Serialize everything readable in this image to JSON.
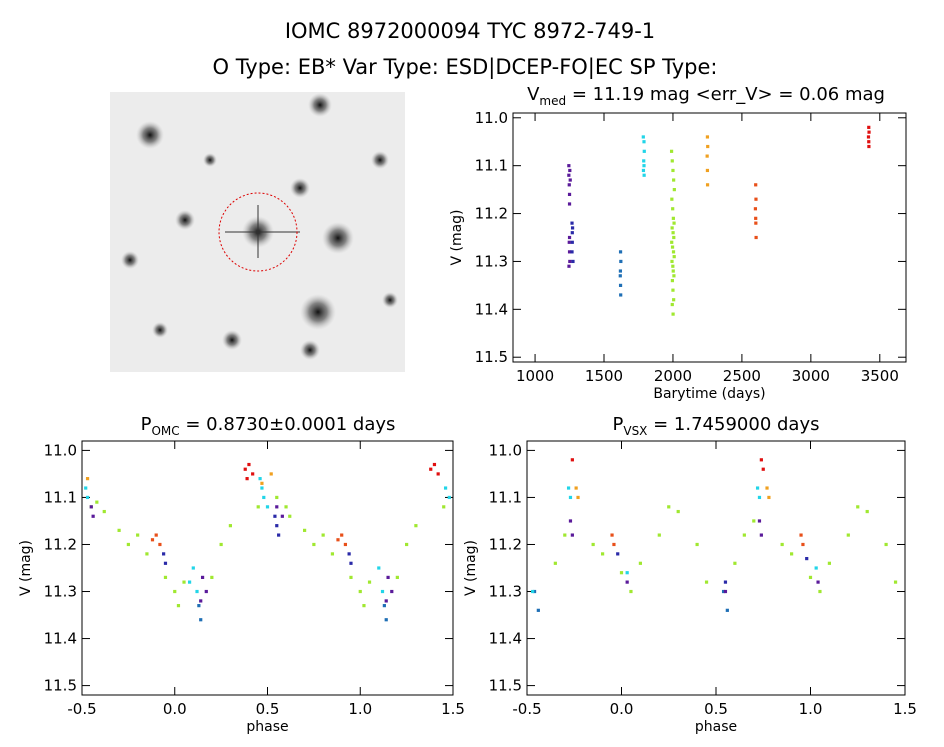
{
  "header": {
    "title": "IOMC 8972000094    TYC 8972-749-1",
    "subtitle": "O Type: EB*  Var Type: ESD|DCEP-FO|EC  SP Type:"
  },
  "chart_data": [
    {
      "type": "scatter",
      "title": [
        "V",
        "med",
        " = 11.19 mag <err_V> = 0.06 mag"
      ],
      "xlabel": "Barytime (days)",
      "ylabel": "V (mag)",
      "xlim": [
        840,
        3690
      ],
      "ylim": [
        11.51,
        10.99
      ],
      "xticks": [
        1000,
        1500,
        2000,
        2500,
        3000,
        3500
      ],
      "yticks": [
        {
          "value": 11,
          "label": "11.0"
        },
        11.1,
        11.2,
        11.3,
        11.4,
        11.5
      ],
      "series": [
        {
          "color": "#5a1a9a",
          "x": [
            1245,
            1245,
            1248,
            1250,
            1250,
            1252,
            1255,
            1248,
            1250,
            1252,
            1246,
            1250
          ],
          "y": [
            11.1,
            11.12,
            11.14,
            11.16,
            11.18,
            11.11,
            11.13,
            11.26,
            11.28,
            11.3,
            11.31,
            11.25
          ]
        },
        {
          "color": "#2a2aa8",
          "x": [
            1268,
            1270,
            1272,
            1270,
            1268,
            1275
          ],
          "y": [
            11.22,
            11.24,
            11.23,
            11.26,
            11.28,
            11.3
          ]
        },
        {
          "color": "#1f6fb5",
          "x": [
            1620,
            1622,
            1618,
            1620,
            1621,
            1619
          ],
          "y": [
            11.28,
            11.3,
            11.33,
            11.35,
            11.37,
            11.32
          ]
        },
        {
          "color": "#22d5e8",
          "x": [
            1785,
            1790,
            1792,
            1788,
            1790,
            1786,
            1791
          ],
          "y": [
            11.04,
            11.05,
            11.07,
            11.09,
            11.1,
            11.11,
            11.12
          ]
        },
        {
          "color": "#a0e830",
          "x": [
            1990,
            1995,
            2000,
            2005,
            2010,
            1992,
            1998,
            2003,
            2008,
            1994,
            2001,
            2006,
            1991,
            1997,
            2004,
            2009,
            1993,
            1999,
            2002,
            2007,
            1996,
            2000,
            2005,
            1995,
            2001
          ],
          "y": [
            11.07,
            11.09,
            11.11,
            11.13,
            11.15,
            11.17,
            11.19,
            11.21,
            11.22,
            11.23,
            11.24,
            11.25,
            11.26,
            11.27,
            11.28,
            11.29,
            11.3,
            11.31,
            11.32,
            11.33,
            11.34,
            11.36,
            11.38,
            11.39,
            11.41
          ]
        },
        {
          "color": "#f0a020",
          "x": [
            2250,
            2252,
            2248,
            2250,
            2251
          ],
          "y": [
            11.04,
            11.06,
            11.08,
            11.11,
            11.14
          ]
        },
        {
          "color": "#e8501a",
          "x": [
            2600,
            2602,
            2598,
            2600,
            2601,
            2603
          ],
          "y": [
            11.14,
            11.17,
            11.19,
            11.21,
            11.22,
            11.25
          ]
        },
        {
          "color": "#e01010",
          "x": [
            3420,
            3422,
            3418,
            3420,
            3421
          ],
          "y": [
            11.02,
            11.03,
            11.04,
            11.05,
            11.06
          ]
        }
      ]
    },
    {
      "type": "scatter",
      "title": [
        "P",
        "OMC",
        " = 0.8730±0.0001 days"
      ],
      "xlabel": "phase",
      "ylabel": "V (mag)",
      "xlim": [
        -0.5,
        1.5
      ],
      "ylim": [
        11.52,
        10.98
      ],
      "xticks": [
        -0.5,
        {
          "value": 0,
          "label": "0.0"
        },
        0.5,
        {
          "value": 1,
          "label": "1.0"
        },
        1.5
      ],
      "yticks": [
        {
          "value": 11,
          "label": "11.0"
        },
        11.1,
        11.2,
        11.3,
        11.4,
        11.5
      ],
      "series": [
        {
          "color": "#a0e830",
          "x": [
            -0.45,
            -0.42,
            -0.38,
            -0.3,
            -0.25,
            -0.2,
            -0.15,
            -0.05,
            0.0,
            0.02,
            0.05,
            0.2,
            0.25,
            0.3,
            0.45,
            0.55,
            0.6,
            0.62,
            0.7,
            0.75,
            0.8,
            0.85,
            0.95,
            1.0,
            1.02,
            1.05,
            1.2,
            1.25,
            1.3,
            1.45
          ],
          "y": [
            11.12,
            11.11,
            11.13,
            11.17,
            11.2,
            11.18,
            11.22,
            11.27,
            11.3,
            11.33,
            11.28,
            11.27,
            11.2,
            11.16,
            11.12,
            11.1,
            11.12,
            11.14,
            11.17,
            11.2,
            11.18,
            11.22,
            11.27,
            11.3,
            11.33,
            11.28,
            11.27,
            11.2,
            11.16,
            11.12
          ]
        },
        {
          "color": "#22d5e8",
          "x": [
            -0.48,
            -0.47,
            0.46,
            0.47,
            0.48,
            0.5,
            1.46,
            1.48,
            0.1,
            0.12,
            0.08,
            1.1,
            1.12
          ],
          "y": [
            11.08,
            11.1,
            11.06,
            11.08,
            11.1,
            11.12,
            11.08,
            11.1,
            11.25,
            11.3,
            11.28,
            11.25,
            11.3
          ]
        },
        {
          "color": "#e01010",
          "x": [
            0.38,
            0.4,
            0.42,
            0.39,
            1.38,
            1.4,
            1.42
          ],
          "y": [
            11.04,
            11.03,
            11.05,
            11.06,
            11.04,
            11.03,
            11.05
          ]
        },
        {
          "color": "#e8501a",
          "x": [
            -0.1,
            -0.08,
            -0.12,
            0.9,
            0.92,
            0.88
          ],
          "y": [
            11.18,
            11.2,
            11.19,
            11.18,
            11.2,
            11.19
          ]
        },
        {
          "color": "#2a2aa8",
          "x": [
            -0.06,
            -0.05,
            0.54,
            0.55,
            0.56,
            0.94,
            0.95
          ],
          "y": [
            11.22,
            11.24,
            11.14,
            11.16,
            11.18,
            11.22,
            11.24
          ]
        },
        {
          "color": "#5a1a9a",
          "x": [
            0.15,
            0.17,
            0.14,
            0.55,
            0.58,
            1.15,
            1.17,
            1.14,
            -0.45,
            -0.44
          ],
          "y": [
            11.27,
            11.3,
            11.32,
            11.12,
            11.14,
            11.27,
            11.3,
            11.32,
            11.12,
            11.14
          ]
        },
        {
          "color": "#1f6fb5",
          "x": [
            0.13,
            0.14,
            1.13,
            1.14
          ],
          "y": [
            11.33,
            11.36,
            11.33,
            11.36
          ]
        },
        {
          "color": "#f0a020",
          "x": [
            -0.47,
            0.47,
            0.52
          ],
          "y": [
            11.06,
            11.07,
            11.05
          ]
        }
      ]
    },
    {
      "type": "scatter",
      "title": [
        "P",
        "VSX",
        " = 1.7459000 days"
      ],
      "xlabel": "phase",
      "ylabel": "V (mag)",
      "xlim": [
        -0.5,
        1.5
      ],
      "ylim": [
        11.52,
        10.98
      ],
      "xticks": [
        -0.5,
        {
          "value": 0,
          "label": "0.0"
        },
        0.5,
        {
          "value": 1,
          "label": "1.0"
        },
        1.5
      ],
      "yticks": [
        {
          "value": 11,
          "label": "11.0"
        },
        11.1,
        11.2,
        11.3,
        11.4,
        11.5
      ],
      "series": [
        {
          "color": "#a0e830",
          "x": [
            -0.35,
            -0.3,
            -0.15,
            -0.1,
            0.0,
            0.05,
            0.1,
            0.2,
            0.25,
            0.3,
            0.4,
            0.45,
            0.6,
            0.65,
            0.7,
            0.85,
            0.9,
            1.0,
            1.05,
            1.1,
            1.2,
            1.25,
            1.3,
            1.4,
            1.45
          ],
          "y": [
            11.24,
            11.18,
            11.2,
            11.22,
            11.26,
            11.3,
            11.24,
            11.18,
            11.12,
            11.13,
            11.2,
            11.28,
            11.24,
            11.18,
            11.15,
            11.2,
            11.22,
            11.27,
            11.3,
            11.24,
            11.18,
            11.12,
            11.13,
            11.2,
            11.28
          ]
        },
        {
          "color": "#1f6fb5",
          "x": [
            -0.46,
            -0.44,
            0.54,
            0.56
          ],
          "y": [
            11.3,
            11.34,
            11.3,
            11.34
          ]
        },
        {
          "color": "#22d5e8",
          "x": [
            -0.28,
            -0.27,
            0.72,
            0.73,
            -0.47,
            0.03,
            1.03
          ],
          "y": [
            11.08,
            11.1,
            11.08,
            11.1,
            11.3,
            11.26,
            11.25
          ]
        },
        {
          "color": "#f0a020",
          "x": [
            -0.24,
            -0.23,
            0.77,
            0.78
          ],
          "y": [
            11.08,
            11.1,
            11.08,
            11.1
          ]
        },
        {
          "color": "#e01010",
          "x": [
            -0.26,
            0.74,
            0.75
          ],
          "y": [
            11.02,
            11.02,
            11.04
          ]
        },
        {
          "color": "#5a1a9a",
          "x": [
            -0.27,
            -0.26,
            0.73,
            0.74,
            0.03,
            1.04,
            0.55
          ],
          "y": [
            11.15,
            11.18,
            11.15,
            11.18,
            11.28,
            11.28,
            11.3
          ]
        },
        {
          "color": "#e8501a",
          "x": [
            -0.05,
            -0.04,
            0.95,
            0.96
          ],
          "y": [
            11.18,
            11.2,
            11.18,
            11.2
          ]
        },
        {
          "color": "#2a2aa8",
          "x": [
            -0.02,
            0.98,
            0.55
          ],
          "y": [
            11.22,
            11.23,
            11.28
          ]
        }
      ]
    }
  ]
}
